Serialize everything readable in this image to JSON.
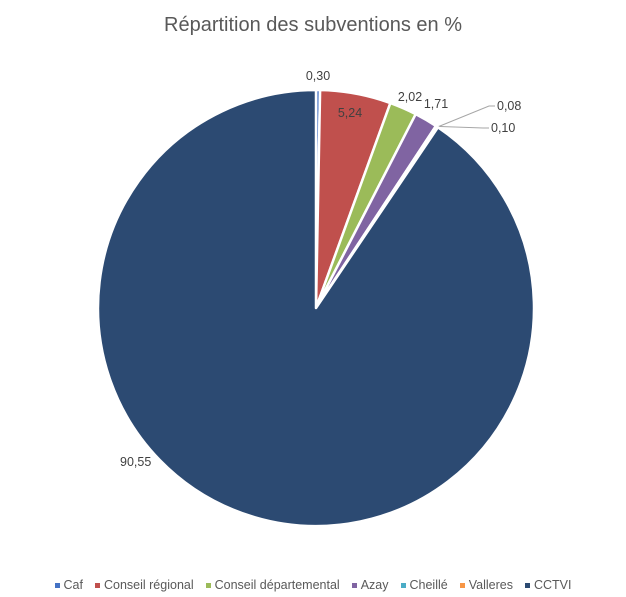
{
  "chart_data": {
    "type": "pie",
    "title": "Répartition des subventions en %",
    "categories": [
      "Caf",
      "Conseil régional",
      "Conseil départemental",
      "Azay",
      "Cheillé",
      "Valleres",
      "CCTVI"
    ],
    "values": [
      0.3,
      5.24,
      2.02,
      1.71,
      0.1,
      0.08,
      90.55
    ],
    "labels": [
      "0,30",
      "5,24",
      "2,02",
      "1,71",
      "0,10",
      "0,08",
      "90,55"
    ],
    "colors": [
      "#4472c4",
      "#c0504d",
      "#9bbb59",
      "#8064a2",
      "#4bacc6",
      "#f79646",
      "#2c4a72"
    ],
    "legend_position": "bottom"
  }
}
